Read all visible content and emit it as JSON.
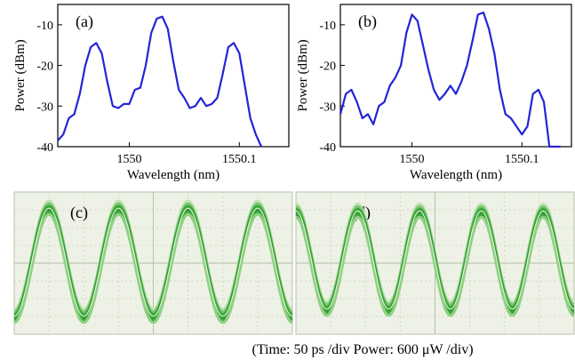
{
  "chart_data": [
    {
      "type": "line",
      "panel_label": "(a)",
      "xlabel": "Wavelength (nm)",
      "ylabel": "Power (dBm)",
      "xlim": [
        1549.935,
        1550.145
      ],
      "ylim": [
        -40,
        -5
      ],
      "xticks": [
        1550,
        1550.1
      ],
      "xtick_labels": [
        "1550",
        "1550.1"
      ],
      "yticks": [
        -10,
        -20,
        -30,
        -40
      ],
      "ytick_labels": [
        "-10",
        "-20",
        "-30",
        "-40"
      ],
      "grid": false,
      "series": [
        {
          "color": "#2424d8",
          "x": [
            1549.935,
            1549.94,
            1549.945,
            1549.95,
            1549.955,
            1549.96,
            1549.965,
            1549.97,
            1549.975,
            1549.98,
            1549.985,
            1549.99,
            1549.995,
            1550.0,
            1550.005,
            1550.01,
            1550.015,
            1550.02,
            1550.025,
            1550.03,
            1550.035,
            1550.04,
            1550.045,
            1550.05,
            1550.055,
            1550.06,
            1550.065,
            1550.07,
            1550.075,
            1550.08,
            1550.085,
            1550.09,
            1550.095,
            1550.1,
            1550.105,
            1550.11,
            1550.115,
            1550.12
          ],
          "y": [
            -38.5,
            -37,
            -33,
            -32,
            -27,
            -20,
            -15.5,
            -14.5,
            -17,
            -24,
            -30,
            -30.5,
            -29.5,
            -29.5,
            -26,
            -25.5,
            -20,
            -12,
            -8.5,
            -8,
            -11,
            -19,
            -26,
            -28,
            -30.5,
            -30,
            -28,
            -30,
            -29.5,
            -28,
            -22,
            -15.5,
            -14.5,
            -17,
            -25,
            -33,
            -37,
            -40
          ]
        }
      ]
    },
    {
      "type": "line",
      "panel_label": "(b)",
      "xlabel": "Wavelength (nm)",
      "ylabel": "Power (dBm)",
      "xlim": [
        1549.935,
        1550.145
      ],
      "ylim": [
        -40,
        -5
      ],
      "xticks": [
        1550,
        1550.1
      ],
      "xtick_labels": [
        "1550",
        "1550.1"
      ],
      "yticks": [
        -10,
        -20,
        -30,
        -40
      ],
      "ytick_labels": [
        "-10",
        "-20",
        "-30",
        "-40"
      ],
      "grid": false,
      "series": [
        {
          "color": "#2424d8",
          "x": [
            1549.935,
            1549.94,
            1549.945,
            1549.95,
            1549.955,
            1549.96,
            1549.965,
            1549.97,
            1549.975,
            1549.98,
            1549.985,
            1549.99,
            1549.995,
            1550.0,
            1550.005,
            1550.01,
            1550.015,
            1550.02,
            1550.025,
            1550.03,
            1550.035,
            1550.04,
            1550.045,
            1550.05,
            1550.055,
            1550.06,
            1550.065,
            1550.07,
            1550.075,
            1550.08,
            1550.085,
            1550.09,
            1550.095,
            1550.1,
            1550.105,
            1550.11,
            1550.115,
            1550.12,
            1550.125,
            1550.13,
            1550.135
          ],
          "y": [
            -32,
            -27,
            -26,
            -29,
            -33,
            -32,
            -34.5,
            -30,
            -29,
            -25,
            -23,
            -20,
            -12,
            -7.5,
            -9,
            -15,
            -21,
            -26,
            -28.5,
            -27,
            -25,
            -27,
            -24,
            -20,
            -14,
            -7.5,
            -7,
            -11,
            -17,
            -26,
            -32,
            -33,
            -35,
            -37,
            -35,
            -27,
            -26,
            -29,
            -40,
            -40,
            -40
          ]
        }
      ]
    },
    {
      "type": "line",
      "panel_label": "(c)",
      "description_axes": "oscilloscope eye/waveform trace",
      "grid": true,
      "series": [
        {
          "color": "#3aa63a",
          "periods_shown": 4,
          "min_level": 0.12,
          "max_level": 0.88,
          "start_phase_deg": 180
        }
      ]
    },
    {
      "type": "line",
      "panel_label": "(d)",
      "grid": true,
      "series": [
        {
          "color": "#3aa63a",
          "periods_shown": 4.5,
          "min_level": 0.17,
          "max_level": 0.86,
          "start_phase_deg": 0
        }
      ]
    }
  ],
  "caption": "(Time: 50 ps /div    Power: 600 μW /div)"
}
